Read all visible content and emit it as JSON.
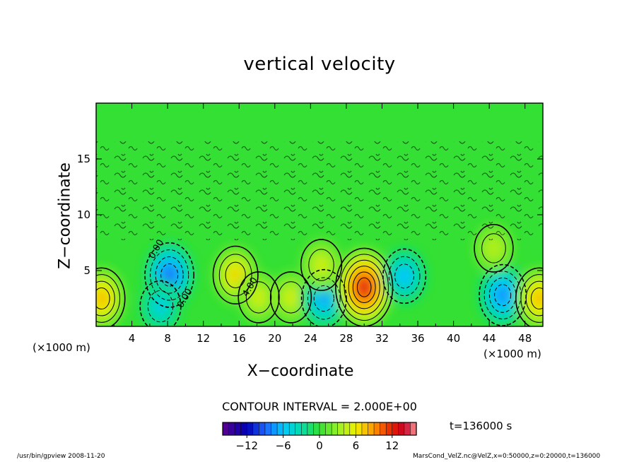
{
  "chart_data": {
    "type": "heatmap",
    "title": "vertical velocity",
    "xlabel": "X−coordinate",
    "ylabel": "Z−coordinate",
    "x_unit_left": "(×1000 m)",
    "x_unit_right": "(×1000 m)",
    "xlim": [
      0,
      50
    ],
    "ylim": [
      0,
      20
    ],
    "x_ticks": [
      4,
      8,
      12,
      16,
      20,
      24,
      28,
      32,
      36,
      40,
      44,
      48
    ],
    "x_tick_labels": [
      "4",
      "8",
      "12",
      "16",
      "20",
      "24",
      "28",
      "32",
      "36",
      "40",
      "44",
      "48"
    ],
    "y_ticks": [
      5,
      10,
      15
    ],
    "y_tick_labels": [
      "5",
      "10",
      "15"
    ],
    "contour_interval": "CONTOUR INTERVAL = 2.000E+00",
    "contour_labels": [
      {
        "text": "0.00",
        "x": 7.0,
        "z": 6.8
      },
      {
        "text": "4.00",
        "x": 17.5,
        "z": 3.4
      },
      {
        "text": "0.00",
        "x": 10.2,
        "z": 2.4
      }
    ],
    "colorbar": {
      "range": [
        -16,
        16
      ],
      "ticks": [
        -12,
        -6,
        0,
        6,
        12
      ],
      "tick_labels": [
        "−12",
        "−6",
        "0",
        "6",
        "12"
      ]
    },
    "features": [
      {
        "x": 0.6,
        "z": 2.5,
        "value": 8
      },
      {
        "x": 8.2,
        "z": 4.6,
        "value": -9
      },
      {
        "x": 7.2,
        "z": 1.8,
        "value": -5
      },
      {
        "x": 15.6,
        "z": 4.6,
        "value": 7
      },
      {
        "x": 18.2,
        "z": 2.6,
        "value": 5
      },
      {
        "x": 21.8,
        "z": 2.6,
        "value": 5
      },
      {
        "x": 25.5,
        "z": 2.5,
        "value": -7
      },
      {
        "x": 25.2,
        "z": 5.5,
        "value": 5
      },
      {
        "x": 30.0,
        "z": 3.5,
        "value": 13
      },
      {
        "x": 34.5,
        "z": 4.5,
        "value": -6
      },
      {
        "x": 45.5,
        "z": 2.8,
        "value": -8
      },
      {
        "x": 49.6,
        "z": 2.5,
        "value": 8
      },
      {
        "x": 44.5,
        "z": 7.0,
        "value": 4
      }
    ],
    "time": "t=136000 s"
  },
  "footer": {
    "left": "/usr/bin/gpview  2008-11-20",
    "right": "MarsCond_VelZ.nc@VelZ,x=0:50000,z=0:20000,t=136000"
  }
}
